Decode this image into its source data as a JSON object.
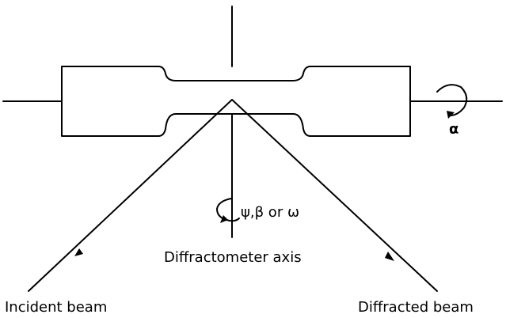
{
  "labels": {
    "alpha": "α",
    "rotation_axes": "ψ,β or ω",
    "diffractometer_axis": "Diffractometer axis",
    "incident_beam": "Incident beam",
    "diffracted_beam": "Diffracted beam"
  },
  "colors": {
    "line": "#000000",
    "background": "#ffffff"
  }
}
